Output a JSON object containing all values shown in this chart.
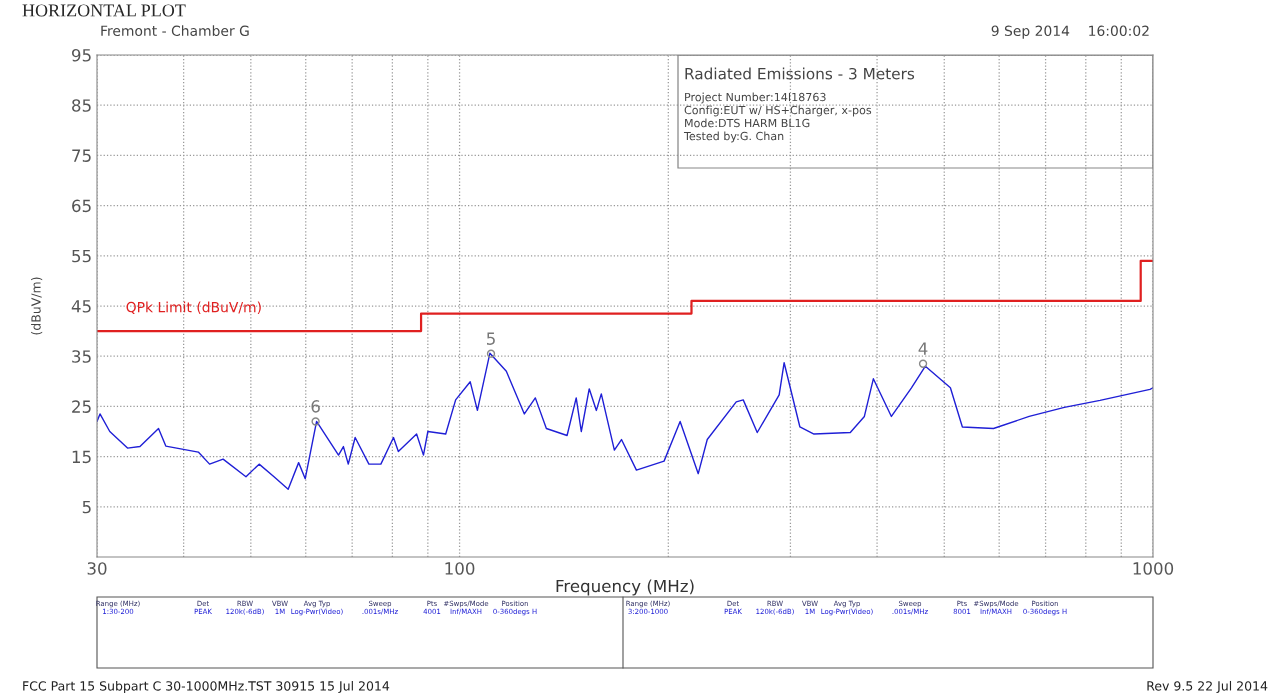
{
  "chart_data": {
    "type": "line",
    "title": "HORIZONTAL PLOT",
    "xlabel": "Frequency (MHz)",
    "ylabel": "(dBuV/m)",
    "log": "x",
    "xlim": [
      30,
      1000
    ],
    "ylim": [
      -5,
      95
    ],
    "xticks": [
      30,
      {
        "value": 40,
        "label": null
      },
      {
        "value": 50,
        "label": null
      },
      {
        "value": 60,
        "label": null
      },
      {
        "value": 70,
        "label": null
      },
      {
        "value": 80,
        "label": null
      },
      {
        "value": 90,
        "label": null
      },
      100,
      {
        "value": 200,
        "label": null
      },
      {
        "value": 300,
        "label": null
      },
      {
        "value": 400,
        "label": null
      },
      {
        "value": 500,
        "label": null
      },
      {
        "value": 600,
        "label": null
      },
      {
        "value": 700,
        "label": null
      },
      {
        "value": 800,
        "label": null
      },
      {
        "value": 900,
        "label": null
      },
      1000
    ],
    "yticks": [
      5,
      15,
      25,
      35,
      45,
      55,
      65,
      75,
      85,
      95
    ],
    "grid": true,
    "legend": false,
    "marker": "none",
    "line_style": "solid",
    "series": [
      {
        "color": "#1f1fd6",
        "x": [
          30,
          30.3,
          31.3,
          33.2,
          34.6,
          36.8,
          37.7,
          42.0,
          43.6,
          45.6,
          49.2,
          51.4,
          54.0,
          56.6,
          58.6,
          59.9,
          62.2,
          66.9,
          68.0,
          69.1,
          70.7,
          74.0,
          77.0,
          80.3,
          81.6,
          86.7,
          88.7,
          90.0,
          95.5,
          98.7,
          103.6,
          106.1,
          110.6,
          116.8,
          124.0,
          128.6,
          133.4,
          142.9,
          147.3,
          149.8,
          153.8,
          157.5,
          160.1,
          167.2,
          171.2,
          179.9,
          197.2,
          208,
          220.9,
          227.6,
          250.6,
          256.5,
          268.7,
          289.0,
          293.8,
          309.6,
          324.4,
          366,
          383.5,
          395.1,
          419.5,
          448.4,
          469.6,
          510.3,
          531,
          588.8,
          662.9,
          745,
          838.7,
          990,
          1000
        ],
        "values": [
          22,
          23.5,
          20,
          16.7,
          17,
          20.6,
          17.1,
          15.9,
          13.5,
          14.5,
          11,
          13.5,
          11,
          8.5,
          13.8,
          10.6,
          22,
          15.3,
          17,
          13.5,
          18.8,
          13.5,
          13.5,
          18.8,
          16,
          19.5,
          15.3,
          20,
          19.5,
          26.3,
          29.9,
          24.2,
          35.6,
          32,
          23.5,
          26.7,
          20.6,
          19.2,
          26.7,
          20,
          28.5,
          24.2,
          27.5,
          16.3,
          18.4,
          12.3,
          14.1,
          22,
          11.6,
          18.4,
          25.9,
          26.3,
          19.8,
          27.3,
          33.7,
          20.9,
          19.5,
          19.8,
          23,
          30.5,
          23,
          28.7,
          33,
          28.7,
          20.9,
          20.6,
          23,
          24.8,
          26.2,
          28.4,
          28.7
        ]
      },
      {
        "type": "step",
        "name": "QPk Limit (dBuV/m)",
        "color": "#e02020",
        "x": [
          30,
          88,
          88,
          216,
          216,
          960,
          960,
          1000
        ],
        "values": [
          40,
          40,
          43.5,
          43.5,
          46,
          46,
          54,
          54
        ]
      }
    ],
    "annotations": [
      "Fremont - Chamber G",
      "9 Sep 2014    16:00:02",
      "Radiated Emissions - 3 Meters",
      "Project Number:14I18763",
      "Config:EUT w/ HS+Charger, x-pos",
      "Mode:DTS HARM BL1G",
      "Tested by:G. Chan",
      "FCC Part 15 Subpart C 30-1000MHz.TST 30915 15 Jul 2014",
      "Rev 9.5 22 Jul 2014",
      "Range (MHz)",
      "Det",
      "RBW",
      "VBW",
      "Avg Typ",
      "Sweep",
      "Pts",
      "#Swps/Mode",
      "Position",
      "1:30-200",
      "PEAK",
      "120k(-6dB)",
      "1M",
      "Log-Pwr(Video)",
      ".001s/MHz",
      "4001",
      "Inf/MAXH",
      "0-360degs H",
      "Range (MHz)",
      "Det",
      "RBW",
      "VBW",
      "Avg Typ",
      "Sweep",
      "Pts",
      "#Swps/Mode",
      "Position",
      "3:200-1000",
      "PEAK",
      "120k(-6dB)",
      "1M",
      "Log-Pwr(Video)",
      ".001s/MHz",
      "8001",
      "Inf/MAXH",
      "0-360degs H",
      {
        "text": "6",
        "x": 62,
        "y": 22
      },
      {
        "text": "5",
        "x": 111,
        "y": 35.5
      },
      {
        "text": "4",
        "x": 466,
        "y": 33.5
      }
    ]
  }
}
